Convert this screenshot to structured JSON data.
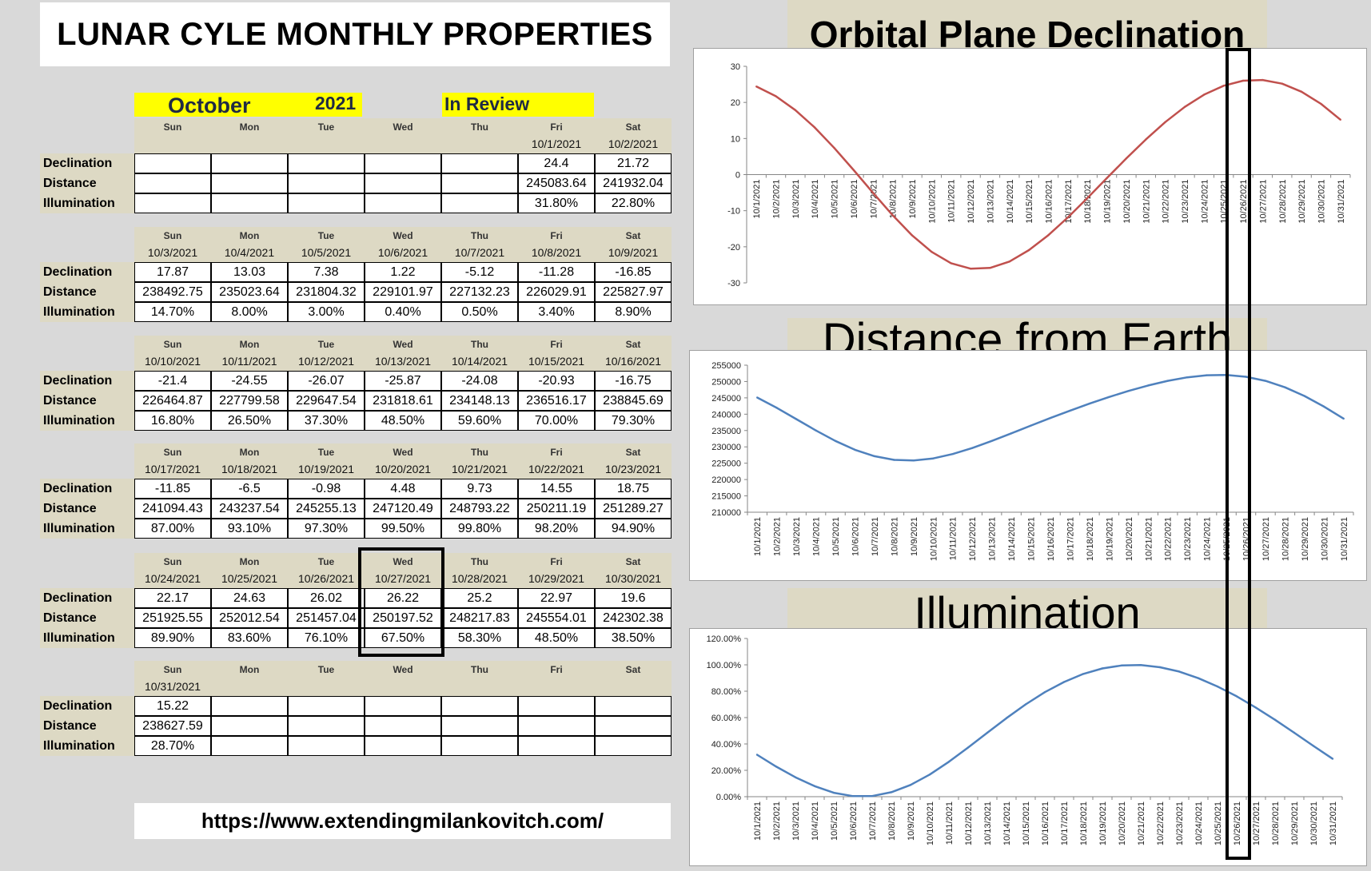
{
  "title": "LUNAR CYLE MONTHLY PROPERTIES",
  "header": {
    "month": "October",
    "year": "2021",
    "review": "In Review"
  },
  "row_labels": [
    "Declination",
    "Distance",
    "Illumination"
  ],
  "weeks": [
    {
      "days": [
        {
          "name": "Sun",
          "date": "",
          "dec": "",
          "dist": "",
          "illum": ""
        },
        {
          "name": "Mon",
          "date": "",
          "dec": "",
          "dist": "",
          "illum": ""
        },
        {
          "name": "Tue",
          "date": "",
          "dec": "",
          "dist": "",
          "illum": ""
        },
        {
          "name": "Wed",
          "date": "",
          "dec": "",
          "dist": "",
          "illum": ""
        },
        {
          "name": "Thu",
          "date": "",
          "dec": "",
          "dist": "",
          "illum": ""
        },
        {
          "name": "Fri",
          "date": "10/1/2021",
          "dec": "24.4",
          "dist": "245083.64",
          "illum": "31.80%"
        },
        {
          "name": "Sat",
          "date": "10/2/2021",
          "dec": "21.72",
          "dist": "241932.04",
          "illum": "22.80%"
        }
      ]
    },
    {
      "days": [
        {
          "name": "Sun",
          "date": "10/3/2021",
          "dec": "17.87",
          "dist": "238492.75",
          "illum": "14.70%"
        },
        {
          "name": "Mon",
          "date": "10/4/2021",
          "dec": "13.03",
          "dist": "235023.64",
          "illum": "8.00%"
        },
        {
          "name": "Tue",
          "date": "10/5/2021",
          "dec": "7.38",
          "dist": "231804.32",
          "illum": "3.00%"
        },
        {
          "name": "Wed",
          "date": "10/6/2021",
          "dec": "1.22",
          "dist": "229101.97",
          "illum": "0.40%"
        },
        {
          "name": "Thu",
          "date": "10/7/2021",
          "dec": "-5.12",
          "dist": "227132.23",
          "illum": "0.50%"
        },
        {
          "name": "Fri",
          "date": "10/8/2021",
          "dec": "-11.28",
          "dist": "226029.91",
          "illum": "3.40%"
        },
        {
          "name": "Sat",
          "date": "10/9/2021",
          "dec": "-16.85",
          "dist": "225827.97",
          "illum": "8.90%"
        }
      ]
    },
    {
      "days": [
        {
          "name": "Sun",
          "date": "10/10/2021",
          "dec": "-21.4",
          "dist": "226464.87",
          "illum": "16.80%"
        },
        {
          "name": "Mon",
          "date": "10/11/2021",
          "dec": "-24.55",
          "dist": "227799.58",
          "illum": "26.50%"
        },
        {
          "name": "Tue",
          "date": "10/12/2021",
          "dec": "-26.07",
          "dist": "229647.54",
          "illum": "37.30%"
        },
        {
          "name": "Wed",
          "date": "10/13/2021",
          "dec": "-25.87",
          "dist": "231818.61",
          "illum": "48.50%"
        },
        {
          "name": "Thu",
          "date": "10/14/2021",
          "dec": "-24.08",
          "dist": "234148.13",
          "illum": "59.60%"
        },
        {
          "name": "Fri",
          "date": "10/15/2021",
          "dec": "-20.93",
          "dist": "236516.17",
          "illum": "70.00%"
        },
        {
          "name": "Sat",
          "date": "10/16/2021",
          "dec": "-16.75",
          "dist": "238845.69",
          "illum": "79.30%"
        }
      ]
    },
    {
      "days": [
        {
          "name": "Sun",
          "date": "10/17/2021",
          "dec": "-11.85",
          "dist": "241094.43",
          "illum": "87.00%"
        },
        {
          "name": "Mon",
          "date": "10/18/2021",
          "dec": "-6.5",
          "dist": "243237.54",
          "illum": "93.10%"
        },
        {
          "name": "Tue",
          "date": "10/19/2021",
          "dec": "-0.98",
          "dist": "245255.13",
          "illum": "97.30%"
        },
        {
          "name": "Wed",
          "date": "10/20/2021",
          "dec": "4.48",
          "dist": "247120.49",
          "illum": "99.50%"
        },
        {
          "name": "Thu",
          "date": "10/21/2021",
          "dec": "9.73",
          "dist": "248793.22",
          "illum": "99.80%"
        },
        {
          "name": "Fri",
          "date": "10/22/2021",
          "dec": "14.55",
          "dist": "250211.19",
          "illum": "98.20%"
        },
        {
          "name": "Sat",
          "date": "10/23/2021",
          "dec": "18.75",
          "dist": "251289.27",
          "illum": "94.90%"
        }
      ]
    },
    {
      "days": [
        {
          "name": "Sun",
          "date": "10/24/2021",
          "dec": "22.17",
          "dist": "251925.55",
          "illum": "89.90%"
        },
        {
          "name": "Mon",
          "date": "10/25/2021",
          "dec": "24.63",
          "dist": "252012.54",
          "illum": "83.60%"
        },
        {
          "name": "Tue",
          "date": "10/26/2021",
          "dec": "26.02",
          "dist": "251457.04",
          "illum": "76.10%"
        },
        {
          "name": "Wed",
          "date": "10/27/2021",
          "dec": "26.22",
          "dist": "250197.52",
          "illum": "67.50%"
        },
        {
          "name": "Thu",
          "date": "10/28/2021",
          "dec": "25.2",
          "dist": "248217.83",
          "illum": "58.30%"
        },
        {
          "name": "Fri",
          "date": "10/29/2021",
          "dec": "22.97",
          "dist": "245554.01",
          "illum": "48.50%"
        },
        {
          "name": "Sat",
          "date": "10/30/2021",
          "dec": "19.6",
          "dist": "242302.38",
          "illum": "38.50%"
        }
      ]
    },
    {
      "days": [
        {
          "name": "Sun",
          "date": "10/31/2021",
          "dec": "15.22",
          "dist": "238627.59",
          "illum": "28.70%"
        },
        {
          "name": "Mon",
          "date": "",
          "dec": "",
          "dist": "",
          "illum": ""
        },
        {
          "name": "Tue",
          "date": "",
          "dec": "",
          "dist": "",
          "illum": ""
        },
        {
          "name": "Wed",
          "date": "",
          "dec": "",
          "dist": "",
          "illum": ""
        },
        {
          "name": "Thu",
          "date": "",
          "dec": "",
          "dist": "",
          "illum": ""
        },
        {
          "name": "Fri",
          "date": "",
          "dec": "",
          "dist": "",
          "illum": ""
        },
        {
          "name": "Sat",
          "date": "",
          "dec": "",
          "dist": "",
          "illum": ""
        }
      ]
    }
  ],
  "highlight_date": "10/27/2021",
  "url": "https://www.extendingmilankovitch.com/",
  "chart_data": [
    {
      "type": "line",
      "title": "Orbital Plane Declination",
      "x": [
        "10/1/2021",
        "10/2/2021",
        "10/3/2021",
        "10/4/2021",
        "10/5/2021",
        "10/6/2021",
        "10/7/2021",
        "10/8/2021",
        "10/9/2021",
        "10/10/2021",
        "10/11/2021",
        "10/12/2021",
        "10/13/2021",
        "10/14/2021",
        "10/15/2021",
        "10/16/2021",
        "10/17/2021",
        "10/18/2021",
        "10/19/2021",
        "10/20/2021",
        "10/21/2021",
        "10/22/2021",
        "10/23/2021",
        "10/24/2021",
        "10/25/2021",
        "10/26/2021",
        "10/27/2021",
        "10/28/2021",
        "10/29/2021",
        "10/30/2021",
        "10/31/2021"
      ],
      "values": [
        24.4,
        21.72,
        17.87,
        13.03,
        7.38,
        1.22,
        -5.12,
        -11.28,
        -16.85,
        -21.4,
        -24.55,
        -26.07,
        -25.87,
        -24.08,
        -20.93,
        -16.75,
        -11.85,
        -6.5,
        -0.98,
        4.48,
        9.73,
        14.55,
        18.75,
        22.17,
        24.63,
        26.02,
        26.22,
        25.2,
        22.97,
        19.6,
        15.22
      ],
      "ylim": [
        -30,
        30
      ],
      "yticks": [
        "30",
        "20",
        "10",
        "0",
        "-10",
        "-20",
        "-30"
      ],
      "color": "#c0504d"
    },
    {
      "type": "line",
      "title": "Distance from Earth",
      "x": [
        "10/1/2021",
        "10/2/2021",
        "10/3/2021",
        "10/4/2021",
        "10/5/2021",
        "10/6/2021",
        "10/7/2021",
        "10/8/2021",
        "10/9/2021",
        "10/10/2021",
        "10/11/2021",
        "10/12/2021",
        "10/13/2021",
        "10/14/2021",
        "10/15/2021",
        "10/16/2021",
        "10/17/2021",
        "10/18/2021",
        "10/19/2021",
        "10/20/2021",
        "10/21/2021",
        "10/22/2021",
        "10/23/2021",
        "10/24/2021",
        "10/25/2021",
        "10/26/2021",
        "10/27/2021",
        "10/28/2021",
        "10/29/2021",
        "10/30/2021",
        "10/31/2021"
      ],
      "values": [
        245083.64,
        241932.04,
        238492.75,
        235023.64,
        231804.32,
        229101.97,
        227132.23,
        226029.91,
        225827.97,
        226464.87,
        227799.58,
        229647.54,
        231818.61,
        234148.13,
        236516.17,
        238845.69,
        241094.43,
        243237.54,
        245255.13,
        247120.49,
        248793.22,
        250211.19,
        251289.27,
        251925.55,
        252012.54,
        251457.04,
        250197.52,
        248217.83,
        245554.01,
        242302.38,
        238627.59
      ],
      "ylim": [
        210000,
        255000
      ],
      "yticks": [
        "255000",
        "250000",
        "245000",
        "240000",
        "235000",
        "230000",
        "225000",
        "220000",
        "215000",
        "210000"
      ],
      "color": "#4f81bd"
    },
    {
      "type": "line",
      "title": "Illumination",
      "x": [
        "10/1/2021",
        "10/2/2021",
        "10/3/2021",
        "10/4/2021",
        "10/5/2021",
        "10/6/2021",
        "10/7/2021",
        "10/8/2021",
        "10/9/2021",
        "10/10/2021",
        "10/11/2021",
        "10/12/2021",
        "10/13/2021",
        "10/14/2021",
        "10/15/2021",
        "10/16/2021",
        "10/17/2021",
        "10/18/2021",
        "10/19/2021",
        "10/20/2021",
        "10/21/2021",
        "10/22/2021",
        "10/23/2021",
        "10/24/2021",
        "10/25/2021",
        "10/26/2021",
        "10/27/2021",
        "10/28/2021",
        "10/29/2021",
        "10/30/2021",
        "10/31/2021"
      ],
      "values": [
        31.8,
        22.8,
        14.7,
        8.0,
        3.0,
        0.4,
        0.5,
        3.4,
        8.9,
        16.8,
        26.5,
        37.3,
        48.5,
        59.6,
        70.0,
        79.3,
        87.0,
        93.1,
        97.3,
        99.5,
        99.8,
        98.2,
        94.9,
        89.9,
        83.6,
        76.1,
        67.5,
        58.3,
        48.5,
        38.5,
        28.7
      ],
      "ylim": [
        0,
        120
      ],
      "yticks": [
        "120.00%",
        "100.00%",
        "80.00%",
        "60.00%",
        "40.00%",
        "20.00%",
        "0.00%"
      ],
      "color": "#4f81bd"
    }
  ]
}
